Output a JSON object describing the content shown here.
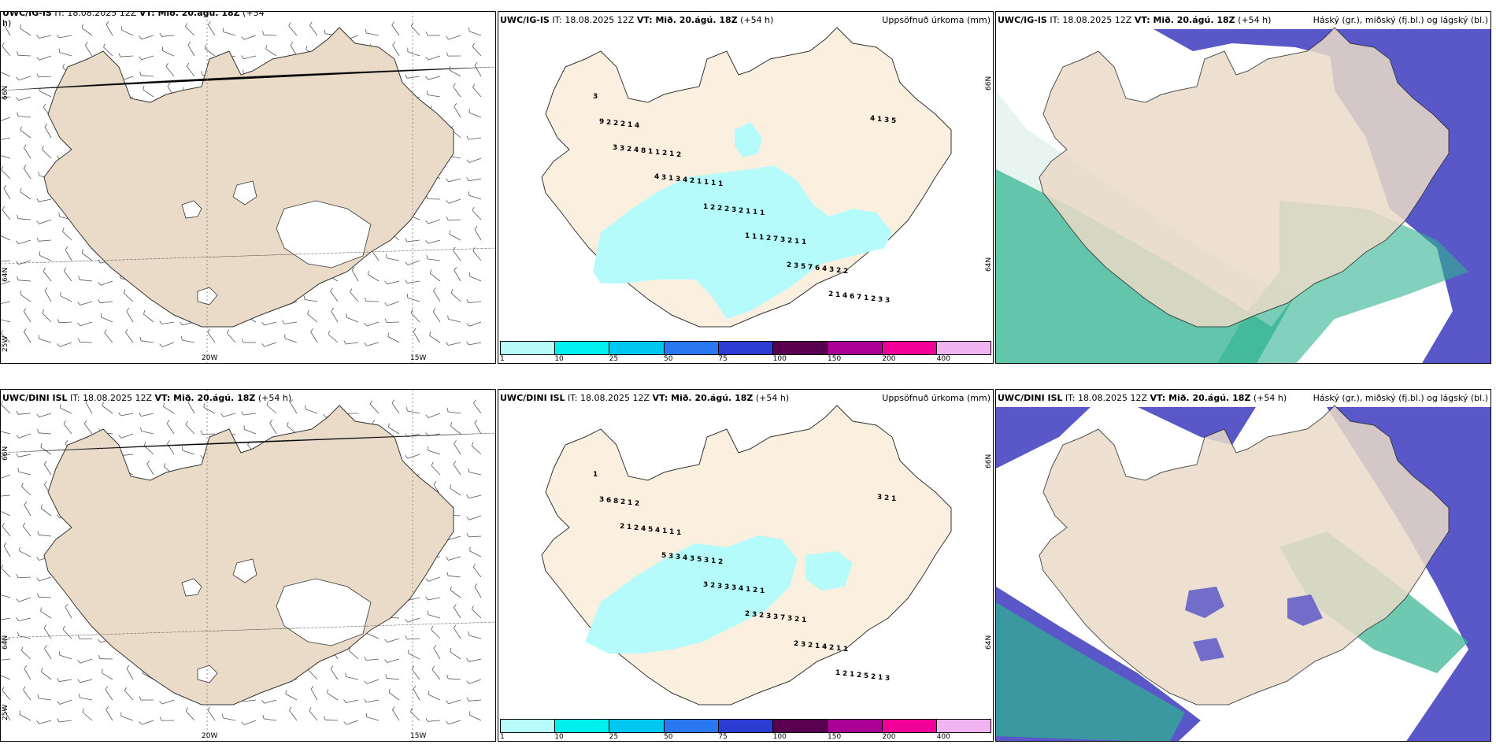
{
  "colors": {
    "land": "#eadbc8",
    "land_light": "#fbefe0",
    "precip": "#b5fbfb",
    "cloud_high": "#5a58c8",
    "cloud_mid": "#2fb38f",
    "cloud_low": "#e8f4ef"
  },
  "rows": [
    {
      "model": "UWC/IG-IS",
      "wind": {
        "model": "UWC/IG-IS",
        "it": "IT: 18.08.2025 12Z",
        "vt": "VT: Mið. 20.ágú. 18Z",
        "lead": "(+54",
        "lead2": "h)"
      },
      "precip": {
        "model": "UWC/IG-IS",
        "it": "IT: 18.08.2025 12Z",
        "vt": "VT: Mið. 20.ágú. 18Z",
        "lead": "(+54 h)",
        "right": "Uppsöfnuð úrkoma (mm)",
        "numbers": [
          "3",
          "4",
          "2",
          "1",
          "1",
          "1",
          "2",
          "3",
          "1",
          "1",
          "1",
          "1",
          "1",
          "2",
          "3",
          "2",
          "2",
          "1",
          "1",
          "2",
          "3",
          "2",
          "2",
          "1",
          "1",
          "2",
          "3",
          "4",
          "1",
          "2",
          "1",
          "2",
          "3",
          "7",
          "6",
          "7",
          "9",
          "8",
          "4",
          "2",
          "2",
          "7",
          "6",
          "5",
          "4",
          "3",
          "2",
          "1",
          "5",
          "4",
          "3",
          "2",
          "1",
          "2",
          "1",
          "3",
          "1",
          "1",
          "3",
          "3",
          "1",
          "1",
          "2",
          "2",
          "4",
          "3",
          "4"
        ]
      },
      "clouds": {
        "model": "UWC/IG-IS",
        "it": "IT: 18.08.2025 12Z",
        "vt": "VT: Mið. 20.ágú. 18Z",
        "lead": "(+54 h)",
        "right": "Háský (gr.), miðský (fj.bl.) og lágský (bl.)"
      }
    },
    {
      "model": "UWC/DINI ISL",
      "wind": {
        "model": "UWC/DINI ISL",
        "it": "IT: 18.08.2025 12Z",
        "vt": "VT: Mið. 20.ágú. 18Z",
        "lead": "(+54 h)",
        "lead2": ""
      },
      "precip": {
        "model": "UWC/DINI ISL",
        "it": "IT: 18.08.2025 12Z",
        "vt": "VT: Mið. 20.ágú. 18Z",
        "lead": "(+54 h)",
        "right": "Uppsöfnuð úrkoma (mm)",
        "numbers": [
          "1",
          "2",
          "1",
          "2",
          "1",
          "1",
          "1",
          "3",
          "1",
          "1",
          "1",
          "2",
          "2",
          "1",
          "1",
          "2",
          "1",
          "3",
          "1",
          "3",
          "2",
          "2",
          "8",
          "4",
          "5",
          "4",
          "7",
          "4",
          "5",
          "6",
          "5",
          "3",
          "3",
          "3",
          "1",
          "2",
          "3",
          "4",
          "4",
          "3",
          "3",
          "2",
          "1",
          "1",
          "2",
          "3",
          "3",
          "2",
          "3",
          "2",
          "2",
          "1",
          "3",
          "2",
          "3",
          "2",
          "1",
          "3",
          "2",
          "5",
          "3",
          "2"
        ]
      },
      "clouds": {
        "model": "UWC/DINI ISL",
        "it": "IT: 18.08.2025 12Z",
        "vt": "VT: Mið. 20.ágú. 18Z",
        "lead": "(+54 h)",
        "right": "Háský (gr.), miðský (fj.bl.) og lágský (bl.)"
      }
    }
  ],
  "axis": {
    "lat_66": "66N",
    "lat_64": "64N",
    "lon_25": "25W",
    "lon_20": "20W",
    "lon_15": "15W"
  },
  "colorbar": {
    "ticks": [
      "1",
      "10",
      "25",
      "50",
      "75",
      "100",
      "150",
      "200",
      "400"
    ],
    "colors": [
      "#b8fbfb",
      "#00f0f0",
      "#00c8f0",
      "#2a78f0",
      "#2a3cd2",
      "#5a0050",
      "#aa0096",
      "#f00096",
      "#f0b4f0"
    ]
  }
}
